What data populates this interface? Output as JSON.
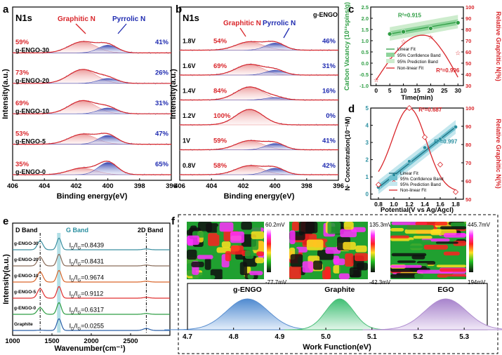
{
  "colors": {
    "red": "#d9262b",
    "blue": "#1f2bb0",
    "green": "#2f9e44",
    "teal": "#2a8fa0",
    "purple": "#9b6cc0",
    "pink": "#e88a8a",
    "lightblue": "#8a96d6"
  },
  "chart_data": [
    {
      "id": "a",
      "type": "spectra-stack",
      "title": "N1s",
      "panel_label": "a",
      "xlabel": "Binding energy(eV)",
      "ylabel": "Intensity(a.u.)",
      "xlim": [
        406,
        396
      ],
      "xticks": [
        "406",
        "404",
        "402",
        "400",
        "398",
        "396"
      ],
      "peak_labels": {
        "graphitic": "Graphitic N",
        "pyrrolic": "Pyrrolic N"
      },
      "series": [
        {
          "name": "g-ENGO-30",
          "graphitic": "59%",
          "pyrrolic": "41%",
          "gN": 0.59,
          "pN": 0.41
        },
        {
          "name": "g-ENGO-20",
          "graphitic": "73%",
          "pyrrolic": "26%",
          "gN": 0.73,
          "pN": 0.26
        },
        {
          "name": "g-ENGO-10",
          "graphitic": "69%",
          "pyrrolic": "31%",
          "gN": 0.69,
          "pN": 0.31
        },
        {
          "name": "g-ENGO-5",
          "graphitic": "53%",
          "pyrrolic": "47%",
          "gN": 0.53,
          "pN": 0.47
        },
        {
          "name": "g-ENGO-0",
          "graphitic": "35%",
          "pyrrolic": "65%",
          "gN": 0.35,
          "pN": 0.65
        }
      ]
    },
    {
      "id": "b",
      "type": "spectra-stack",
      "title": "N1s",
      "subtitle": "g-ENGO",
      "panel_label": "b",
      "xlabel": "Binding energy(eV)",
      "ylabel": "Intensity(a.u.)",
      "xlim": [
        406,
        396
      ],
      "xticks": [
        "406",
        "404",
        "402",
        "400",
        "398",
        "396"
      ],
      "peak_labels": {
        "graphitic": "Graphitic N",
        "pyrrolic": "Pyrrolic N"
      },
      "series": [
        {
          "name": "1.8V",
          "graphitic": "54%",
          "pyrrolic": "46%",
          "gN": 0.54,
          "pN": 0.46
        },
        {
          "name": "1.6V",
          "graphitic": "69%",
          "pyrrolic": "31%",
          "gN": 0.69,
          "pN": 0.31
        },
        {
          "name": "1.4V",
          "graphitic": "84%",
          "pyrrolic": "16%",
          "gN": 0.84,
          "pN": 0.16
        },
        {
          "name": "1.2V",
          "graphitic": "100%",
          "pyrrolic": "0%",
          "gN": 1.0,
          "pN": 0.0
        },
        {
          "name": "1V",
          "graphitic": "59%",
          "pyrrolic": "41%",
          "gN": 0.59,
          "pN": 0.41
        },
        {
          "name": "0.8V",
          "graphitic": "58%",
          "pyrrolic": "42%",
          "gN": 0.58,
          "pN": 0.42
        }
      ]
    },
    {
      "id": "c",
      "type": "scatter+line",
      "panel_label": "c",
      "xlabel": "Time(min)",
      "ylabel": "Carbon Vacancy (10¹³spins/g)",
      "y2label": "Relative Graphitic N(%)",
      "xlim": [
        -2,
        32
      ],
      "ylim": [
        -1.0,
        2.5
      ],
      "y2lim": [
        30,
        100
      ],
      "xticks": [
        0,
        5,
        10,
        15,
        20,
        25,
        30
      ],
      "yticks": [
        "-1.0",
        "-0.5",
        "0.0",
        "0.5",
        "1.0",
        "1.5",
        "2.0",
        "2.5"
      ],
      "y2ticks": [
        "30",
        "40",
        "50",
        "60",
        "70",
        "80",
        "90",
        "100"
      ],
      "vacancy": {
        "x": [
          5,
          10,
          20,
          30
        ],
        "y": [
          1.3,
          1.4,
          1.55,
          1.8
        ],
        "r2": "R²=0.915"
      },
      "graphitic_n": {
        "x": [
          0,
          5,
          10,
          20,
          30
        ],
        "y": [
          35,
          53,
          69,
          73,
          59
        ],
        "r2": "R²=0.996"
      },
      "legend": [
        "Linear Fit",
        "95% Confidence Band",
        "95% Prediction Band",
        "Non-linear Fit"
      ]
    },
    {
      "id": "d",
      "type": "scatter+line",
      "panel_label": "d",
      "xlabel": "Potential(V vs Ag/Agcl)",
      "ylabel": "N· Concentration(10⁻⁵M)",
      "y2label": "Relative Graphitic N(%)",
      "xlim": [
        0.7,
        1.9
      ],
      "ylim": [
        -0.3,
        5
      ],
      "y2lim": [
        50,
        100
      ],
      "xticks": [
        "0.8",
        "1.0",
        "1.2",
        "1.4",
        "1.6",
        "1.8"
      ],
      "yticks": [
        "0",
        "1",
        "2",
        "3",
        "4",
        "5"
      ],
      "y2ticks": [
        "50",
        "60",
        "70",
        "80",
        "90",
        "100"
      ],
      "concentration": {
        "x": [
          0.8,
          1.0,
          1.2,
          1.4,
          1.6,
          1.8
        ],
        "y": [
          0.4,
          1.1,
          1.9,
          2.7,
          3.2,
          3.9
        ],
        "r2": "R²=0.997"
      },
      "graphitic_n": {
        "x": [
          0.8,
          1.0,
          1.2,
          1.4,
          1.6,
          1.8
        ],
        "y": [
          58,
          59,
          100,
          84,
          69,
          54
        ],
        "r2": "R²=0.687"
      },
      "legend": [
        "Linear Fit",
        "95% Confidence Band",
        "95% Prediction Band",
        "Non-linear Fit"
      ]
    },
    {
      "id": "e",
      "type": "raman-stack",
      "panel_label": "e",
      "xlabel": "Wavenumber(cm⁻¹)",
      "ylabel": "Intensity(a.u.)",
      "xlim": [
        1000,
        3000
      ],
      "xticks": [
        "1000",
        "1500",
        "2000",
        "2500"
      ],
      "band_labels": {
        "d": "D Band",
        "g": "G Band",
        "d2": "2D Band"
      },
      "ratio_label": "I_D/I_G",
      "series": [
        {
          "name": "g-ENGO-30",
          "ratio": "=0.8439",
          "r": 0.8439,
          "color": "#3b8fa0"
        },
        {
          "name": "g-ENGO-20",
          "ratio": "=0.8431",
          "r": 0.8431,
          "color": "#8a6d5b"
        },
        {
          "name": "g-ENGO-10",
          "ratio": "=0.9674",
          "r": 0.9674,
          "color": "#d9662b"
        },
        {
          "name": "g-ENGO-5",
          "ratio": "=0.9112",
          "r": 0.9112,
          "color": "#e03030"
        },
        {
          "name": "g-ENGO-0",
          "ratio": "=0.6317",
          "r": 0.6317,
          "color": "#2f9e44"
        },
        {
          "name": "Graphite",
          "ratio": "=0.0255",
          "r": 0.0255,
          "color": "#2a5fa8"
        }
      ]
    },
    {
      "id": "f",
      "type": "kpfm+gaussian",
      "panel_label": "f",
      "xlabel": "Work Function(eV)",
      "xlim": [
        4.7,
        5.35
      ],
      "xticks": [
        "4.7",
        "4.8",
        "4.9",
        "5.0",
        "5.1",
        "5.2",
        "5.3"
      ],
      "maps": [
        {
          "max": "60.2mV",
          "min": "-77.7mV"
        },
        {
          "max": "135.3mV",
          "min": "-42.3mV"
        },
        {
          "max": "445.7mV",
          "min": "194mV"
        }
      ],
      "series": [
        {
          "name": "g-ENGO",
          "center": 4.83,
          "color": "#5a8fd0"
        },
        {
          "name": "Graphite",
          "center": 5.03,
          "color": "#4cbf7a"
        },
        {
          "name": "EGO",
          "center": 5.26,
          "color": "#b08ed0"
        }
      ]
    }
  ]
}
